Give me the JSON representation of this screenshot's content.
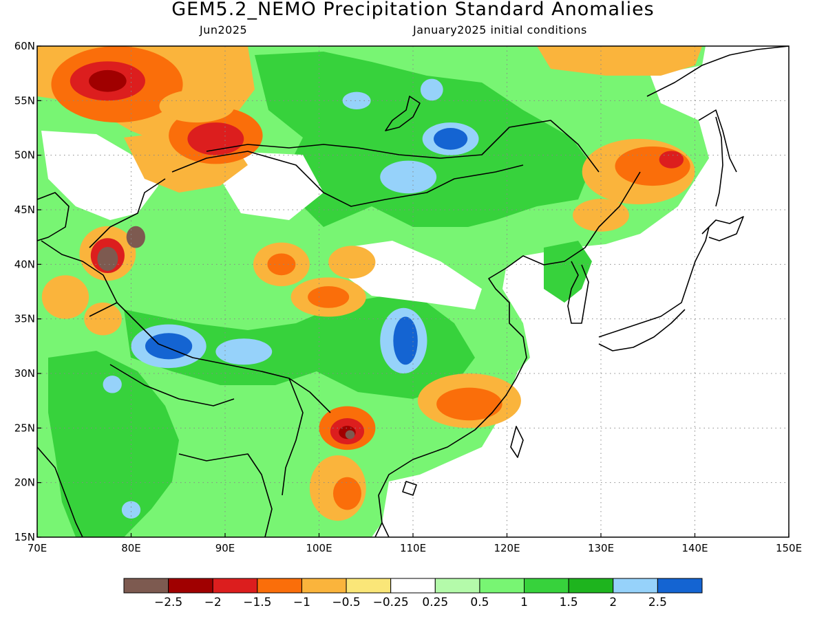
{
  "title": "GEM5.2_NEMO Precipitation Standard Anomalies",
  "subtitle_left": "Jun2025",
  "subtitle_right": "January2025 initial conditions",
  "map": {
    "lon_range": [
      70,
      150
    ],
    "lat_range": [
      15,
      60
    ],
    "lon_labels": [
      "70E",
      "80E",
      "90E",
      "100E",
      "110E",
      "120E",
      "130E",
      "140E",
      "150E"
    ],
    "lat_labels": [
      "15N",
      "20N",
      "25N",
      "30N",
      "35N",
      "40N",
      "45N",
      "50N",
      "55N",
      "60N"
    ],
    "grid": "dotted",
    "background": "#ffffff",
    "land_outline": "#000000"
  },
  "colorbar": {
    "colors": [
      "#7d5a50",
      "#a00000",
      "#dc1e1e",
      "#fa6e0a",
      "#fab43c",
      "#fae678",
      "#ffffff",
      "#b4faaa",
      "#78f573",
      "#37d23c",
      "#1eb41e",
      "#96d2fa",
      "#1464d2"
    ],
    "labels": [
      "−2.5",
      "−2",
      "−1.5",
      "−1",
      "−0.5",
      "−0.25",
      "0.25",
      "0.5",
      "1",
      "1.5",
      "2",
      "2.5"
    ]
  },
  "anomaly_regions": [
    {
      "lon": 78.5,
      "lat": 56.5,
      "rx": 7,
      "ry": 3.5,
      "color": "#fa6e0a"
    },
    {
      "lon": 77.5,
      "lat": 56.8,
      "rx": 4,
      "ry": 1.8,
      "color": "#dc1e1e"
    },
    {
      "lon": 77.5,
      "lat": 56.8,
      "rx": 2,
      "ry": 1,
      "color": "#a00000"
    },
    {
      "lon": 89,
      "lat": 51.8,
      "rx": 5,
      "ry": 2.6,
      "color": "#fa6e0a"
    },
    {
      "lon": 89,
      "lat": 51.5,
      "rx": 3,
      "ry": 1.5,
      "color": "#dc1e1e"
    },
    {
      "lon": 87,
      "lat": 54.5,
      "rx": 4,
      "ry": 1.5,
      "color": "#fab43c"
    },
    {
      "lon": 134,
      "lat": 48.5,
      "rx": 6,
      "ry": 3,
      "color": "#fab43c"
    },
    {
      "lon": 135.5,
      "lat": 49,
      "rx": 4,
      "ry": 1.8,
      "color": "#fa6e0a"
    },
    {
      "lon": 137.5,
      "lat": 49.6,
      "rx": 1.3,
      "ry": 0.8,
      "color": "#dc1e1e"
    },
    {
      "lon": 130,
      "lat": 44.5,
      "rx": 3,
      "ry": 1.5,
      "color": "#fab43c"
    },
    {
      "lon": 96,
      "lat": 40,
      "rx": 3,
      "ry": 2,
      "color": "#fab43c"
    },
    {
      "lon": 96,
      "lat": 40,
      "rx": 1.5,
      "ry": 1,
      "color": "#fa6e0a"
    },
    {
      "lon": 103.5,
      "lat": 40.2,
      "rx": 2.5,
      "ry": 1.5,
      "color": "#fab43c"
    },
    {
      "lon": 101,
      "lat": 37,
      "rx": 4,
      "ry": 1.8,
      "color": "#fab43c"
    },
    {
      "lon": 101,
      "lat": 37,
      "rx": 2.2,
      "ry": 1,
      "color": "#fa6e0a"
    },
    {
      "lon": 116,
      "lat": 27.5,
      "rx": 5.5,
      "ry": 2.5,
      "color": "#fab43c"
    },
    {
      "lon": 116,
      "lat": 27.2,
      "rx": 3.5,
      "ry": 1.5,
      "color": "#fa6e0a"
    },
    {
      "lon": 103,
      "lat": 25,
      "rx": 3,
      "ry": 2,
      "color": "#fa6e0a"
    },
    {
      "lon": 103,
      "lat": 24.7,
      "rx": 1.8,
      "ry": 1.2,
      "color": "#dc1e1e"
    },
    {
      "lon": 103,
      "lat": 24.6,
      "rx": 0.9,
      "ry": 0.6,
      "color": "#a00000"
    },
    {
      "lon": 103.3,
      "lat": 24.4,
      "rx": 0.5,
      "ry": 0.4,
      "color": "#7d5a50"
    },
    {
      "lon": 102,
      "lat": 19.5,
      "rx": 3,
      "ry": 3,
      "color": "#fab43c"
    },
    {
      "lon": 103,
      "lat": 19,
      "rx": 1.5,
      "ry": 1.5,
      "color": "#fa6e0a"
    },
    {
      "lon": 77.5,
      "lat": 41,
      "rx": 3,
      "ry": 2.5,
      "color": "#fab43c"
    },
    {
      "lon": 77.5,
      "lat": 40.8,
      "rx": 1.8,
      "ry": 1.6,
      "color": "#dc1e1e"
    },
    {
      "lon": 77.5,
      "lat": 40.5,
      "rx": 1.1,
      "ry": 1.1,
      "color": "#7d5a50"
    },
    {
      "lon": 80.5,
      "lat": 42.5,
      "rx": 1,
      "ry": 1,
      "color": "#7d5a50"
    },
    {
      "lon": 73,
      "lat": 37,
      "rx": 2.5,
      "ry": 2,
      "color": "#fab43c"
    },
    {
      "lon": 77,
      "lat": 35,
      "rx": 2,
      "ry": 1.5,
      "color": "#fab43c"
    },
    {
      "lon": 84,
      "lat": 32.5,
      "rx": 4,
      "ry": 2,
      "color": "#96d2fa"
    },
    {
      "lon": 84,
      "lat": 32.5,
      "rx": 2.5,
      "ry": 1.2,
      "color": "#1464d2"
    },
    {
      "lon": 92,
      "lat": 32,
      "rx": 3,
      "ry": 1.2,
      "color": "#96d2fa"
    },
    {
      "lon": 109,
      "lat": 33,
      "rx": 2.5,
      "ry": 3,
      "color": "#96d2fa"
    },
    {
      "lon": 109.2,
      "lat": 33,
      "rx": 1.3,
      "ry": 2.2,
      "color": "#1464d2"
    },
    {
      "lon": 114,
      "lat": 51.5,
      "rx": 3,
      "ry": 1.5,
      "color": "#96d2fa"
    },
    {
      "lon": 114,
      "lat": 51.5,
      "rx": 1.8,
      "ry": 1,
      "color": "#1464d2"
    },
    {
      "lon": 109.5,
      "lat": 48,
      "rx": 3,
      "ry": 1.5,
      "color": "#96d2fa"
    },
    {
      "lon": 104,
      "lat": 55,
      "rx": 1.5,
      "ry": 0.8,
      "color": "#96d2fa"
    },
    {
      "lon": 78,
      "lat": 29,
      "rx": 1,
      "ry": 0.8,
      "color": "#96d2fa"
    },
    {
      "lon": 80,
      "lat": 17.5,
      "rx": 1,
      "ry": 0.8,
      "color": "#96d2fa"
    },
    {
      "lon": 112,
      "lat": 56,
      "rx": 1.2,
      "ry": 1,
      "color": "#96d2fa"
    }
  ]
}
